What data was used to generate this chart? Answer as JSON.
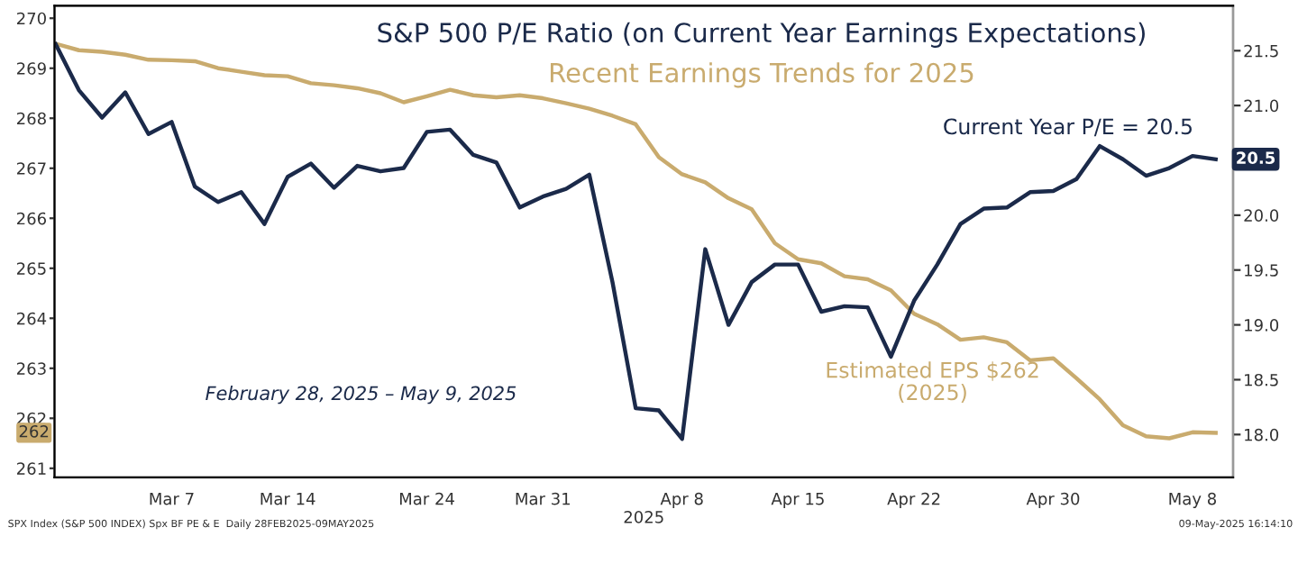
{
  "chart_data": {
    "type": "line",
    "title": "S&P 500 P/E Ratio (on Current Year Earnings Expectations)",
    "subtitle": "Recent Earnings Trends for 2025",
    "xlabel": "2025",
    "categories": [
      null,
      null,
      null,
      null,
      null,
      "Mar 7",
      null,
      null,
      null,
      null,
      "Mar 14",
      null,
      null,
      null,
      null,
      null,
      "Mar 24",
      null,
      null,
      null,
      null,
      "Mar 31",
      null,
      null,
      null,
      null,
      null,
      "Apr 8",
      null,
      null,
      null,
      null,
      "Apr 15",
      null,
      null,
      null,
      null,
      "Apr 22",
      null,
      null,
      null,
      null,
      null,
      "Apr 30",
      null,
      null,
      null,
      null,
      null,
      "May 8",
      null
    ],
    "series": [
      {
        "color": "#1b2a4a",
        "axis": "y2",
        "values": [
          21.56,
          21.14,
          20.89,
          21.12,
          20.74,
          20.85,
          20.26,
          20.12,
          20.21,
          19.92,
          20.35,
          20.47,
          20.25,
          20.45,
          20.4,
          20.43,
          20.76,
          20.78,
          20.55,
          20.48,
          20.07,
          20.17,
          20.24,
          20.37,
          19.39,
          18.24,
          18.22,
          17.96,
          19.69,
          19.0,
          19.39,
          19.55,
          19.55,
          19.12,
          19.17,
          19.16,
          18.71,
          19.22,
          19.55,
          19.92,
          20.06,
          20.07,
          20.21,
          20.22,
          20.33,
          20.63,
          20.51,
          20.36,
          20.43,
          20.54,
          20.51
        ]
      },
      {
        "color": "#c9ab6e",
        "values": [
          269.49,
          269.36,
          269.33,
          269.27,
          269.17,
          269.16,
          269.14,
          269.0,
          268.93,
          268.86,
          268.84,
          268.7,
          268.66,
          268.6,
          268.5,
          268.32,
          268.44,
          268.57,
          268.46,
          268.42,
          268.46,
          268.4,
          268.3,
          268.19,
          268.05,
          267.88,
          267.22,
          266.88,
          266.72,
          266.4,
          266.18,
          265.5,
          265.18,
          265.1,
          264.84,
          264.78,
          264.56,
          264.09,
          263.88,
          263.57,
          263.62,
          263.52,
          263.16,
          263.2,
          262.8,
          262.38,
          261.86,
          261.64,
          261.6,
          261.72,
          261.71
        ]
      }
    ],
    "ylim": [
      260.82,
      270.25
    ],
    "yticks": [
      261,
      262,
      263,
      264,
      265,
      266,
      267,
      268,
      269,
      270
    ],
    "y2lim": [
      17.61,
      21.91
    ],
    "y2ticks": [
      {
        "value": 18,
        "label": "18.0"
      },
      18.5,
      {
        "value": 19,
        "label": "19.0"
      },
      19.5,
      {
        "value": 20,
        "label": "20.0"
      },
      20.5,
      {
        "value": 21,
        "label": "21.0"
      },
      21.5
    ],
    "annotations": [
      "Current Year P/E = 20.5",
      "Estimated EPS $262\n(2025)",
      "February 28, 2025 – May 9, 2025",
      "20.5",
      "262",
      "SPX Index (S&P 500 INDEX) Spx BF PE & E  Daily 28FEB2025-09MAY2025",
      "09-May-2025 16:14:10"
    ],
    "grid": false,
    "legend": false,
    "marker": "none",
    "line_style": "solid"
  }
}
